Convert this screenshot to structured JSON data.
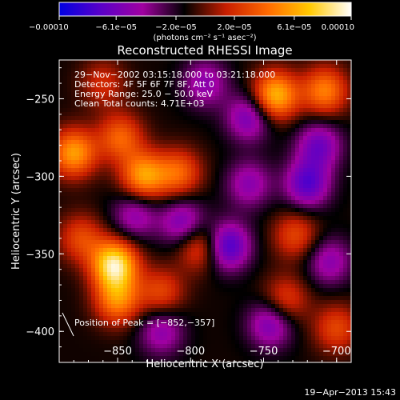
{
  "chart_data": {
    "type": "heatmap",
    "title": "Reconstructed RHESSI Image",
    "xlabel": "Heliocentric X (arcsec)",
    "ylabel": "Heliocentric Y (arcsec)",
    "xlim": [
      -890,
      -690
    ],
    "ylim": [
      -420,
      -225
    ],
    "x_ticks": [
      {
        "value": -850,
        "label": "−850"
      },
      {
        "value": -800,
        "label": "−800"
      },
      {
        "value": -750,
        "label": "−750"
      },
      {
        "value": -700,
        "label": "−700"
      }
    ],
    "y_ticks": [
      {
        "value": -250,
        "label": "−250"
      },
      {
        "value": -300,
        "label": "−300"
      },
      {
        "value": -350,
        "label": "−350"
      },
      {
        "value": -400,
        "label": "−400"
      }
    ],
    "colorbar": {
      "range": [
        -0.0001,
        0.0001
      ],
      "ticks": [
        {
          "value": -0.0001,
          "label": "−0.00010"
        },
        {
          "value": -6.1e-05,
          "label": "−6.1e−05"
        },
        {
          "value": -2e-05,
          "label": "−2.0e−05"
        },
        {
          "value": 2e-05,
          "label": "2.0e−05"
        },
        {
          "value": 6.1e-05,
          "label": "6.1e−05"
        },
        {
          "value": 0.0001,
          "label": "0.00010"
        }
      ],
      "units": "(photons cm⁻² s⁻¹ asec⁻²)",
      "colors": [
        "#0000e0",
        "#5a00c8",
        "#a000a0",
        "#000000",
        "#c81e00",
        "#ff6a00",
        "#ffc800",
        "#ffffff"
      ]
    },
    "info_lines": [
      "29−Nov−2002 03:15:18.000 to 03:21:18.000",
      "Detectors: 4F 5F 6F 7F 8F, Att 0",
      "Energy Range: 25.0 − 50.0 keV",
      "Clean    Total counts: 4.71E+03"
    ],
    "peak_label": "Position of Peak = [−852,−357]",
    "peak": {
      "x": -852,
      "y": -357
    },
    "features": [
      {
        "x": -852,
        "y": -357,
        "value": 0.0001
      },
      {
        "x": -850,
        "y": -380,
        "value": 6e-05
      },
      {
        "x": -832,
        "y": -300,
        "value": 7e-05
      },
      {
        "x": -848,
        "y": -275,
        "value": 5e-05
      },
      {
        "x": -808,
        "y": -298,
        "value": 5e-05
      },
      {
        "x": -793,
        "y": -345,
        "value": 5e-05
      },
      {
        "x": -820,
        "y": -375,
        "value": 4e-05
      },
      {
        "x": -742,
        "y": -248,
        "value": 8e-05
      },
      {
        "x": -708,
        "y": -245,
        "value": 6e-05
      },
      {
        "x": -880,
        "y": -285,
        "value": 7e-05
      },
      {
        "x": -875,
        "y": -340,
        "value": 4e-05
      },
      {
        "x": -728,
        "y": -338,
        "value": 4e-05
      },
      {
        "x": -735,
        "y": -380,
        "value": 4e-05
      },
      {
        "x": -700,
        "y": -398,
        "value": 4e-05
      },
      {
        "x": -860,
        "y": -240,
        "value": 3e-05
      },
      {
        "x": -760,
        "y": -305,
        "value": -4e-05
      },
      {
        "x": -775,
        "y": -345,
        "value": -7e-05
      },
      {
        "x": -805,
        "y": -330,
        "value": -5e-05
      },
      {
        "x": -720,
        "y": -305,
        "value": -6e-05
      },
      {
        "x": -745,
        "y": -395,
        "value": -5e-05
      },
      {
        "x": -760,
        "y": -262,
        "value": -5e-05
      },
      {
        "x": -712,
        "y": -280,
        "value": -5e-05
      },
      {
        "x": -838,
        "y": -325,
        "value": -4e-05
      },
      {
        "x": -820,
        "y": -400,
        "value": -4e-05
      },
      {
        "x": -790,
        "y": -240,
        "value": -4e-05
      },
      {
        "x": -705,
        "y": -355,
        "value": -4e-05
      }
    ]
  },
  "footer": {
    "date": "19−Apr−2013 15:43"
  }
}
